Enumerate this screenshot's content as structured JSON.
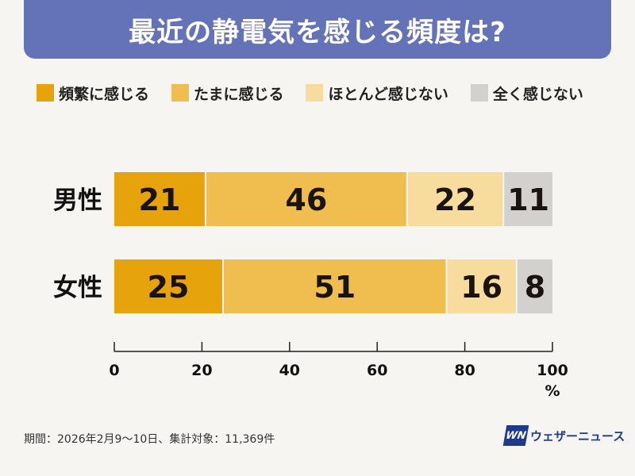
{
  "title": "最近の静電気を感じる頻度は?",
  "chart_data": {
    "type": "bar",
    "orientation": "horizontal-stacked",
    "title": "最近の静電気を感じる頻度は?",
    "categories": [
      "男性",
      "女性"
    ],
    "series": [
      {
        "name": "頻繁に感じる",
        "color": "#e7a30c",
        "values": [
          21,
          25
        ]
      },
      {
        "name": "たまに感じる",
        "color": "#f0be4f",
        "values": [
          46,
          51
        ]
      },
      {
        "name": "ほとんど感じない",
        "color": "#f7dc9e",
        "values": [
          22,
          16
        ]
      },
      {
        "name": "全く感じない",
        "color": "#d2d1ce",
        "values": [
          11,
          8
        ]
      }
    ],
    "xlim": [
      0,
      100
    ],
    "xticks": [
      0,
      20,
      40,
      60,
      80,
      100
    ],
    "xunit": "%",
    "legend": "top"
  },
  "footer": {
    "period": "期間：2026年2月9〜10日、集計対象：11,369件",
    "logo_mark": "WN",
    "logo_text": "ウェザーニュース"
  }
}
